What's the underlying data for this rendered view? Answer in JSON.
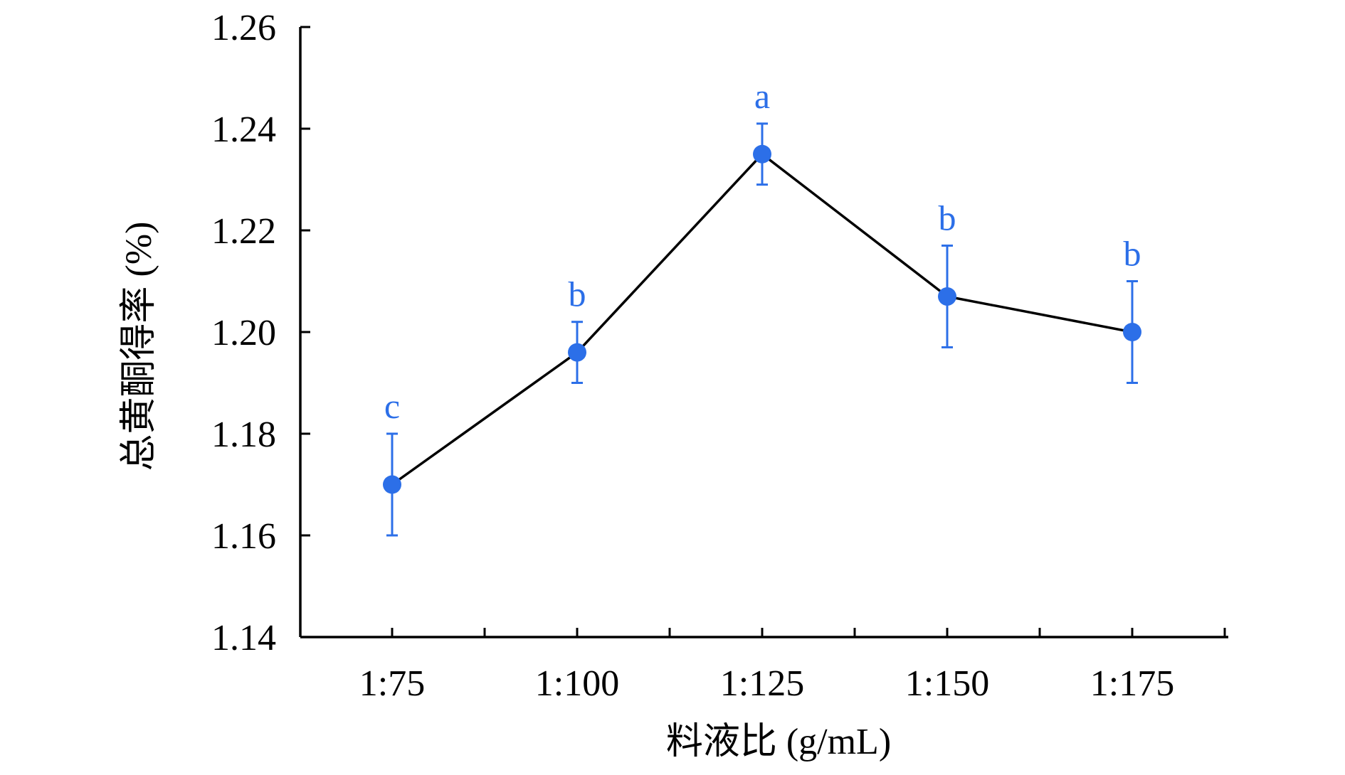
{
  "chart_data": {
    "type": "line",
    "title": "",
    "xlabel": "料液比 (g/mL)",
    "ylabel": "总黄酮得率 (%)",
    "categories": [
      "1:75",
      "1:100",
      "1:125",
      "1:150",
      "1:175"
    ],
    "ylim": [
      1.14,
      1.26
    ],
    "yticks": [
      "1.14",
      "1.16",
      "1.18",
      "1.20",
      "1.22",
      "1.24",
      "1.26"
    ],
    "series": [
      {
        "values": [
          1.17,
          1.196,
          1.235,
          1.207,
          1.2
        ],
        "error": [
          0.01,
          0.006,
          0.006,
          0.01,
          0.01
        ],
        "significance": [
          "c",
          "b",
          "a",
          "b",
          "b"
        ]
      }
    ],
    "grid": false,
    "legend": "none",
    "colors": {
      "line": "#000000",
      "marker": "#2c6fe8",
      "error_bar": "#2c6fe8",
      "significance_text": "#2c6fe8",
      "axis": "#000000"
    }
  }
}
